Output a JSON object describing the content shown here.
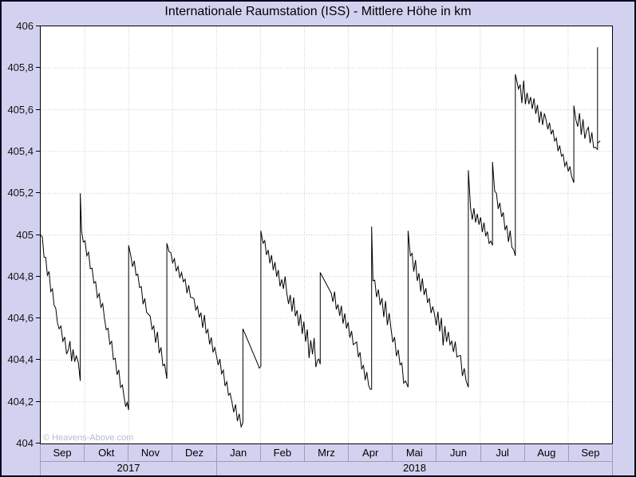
{
  "title": "Internationale Raumstation (ISS) - Mittlere Höhe in km",
  "watermark": "© Heavens-Above.com",
  "colors": {
    "background": "#d2d2f0",
    "plot_background": "#ffffff",
    "outer_border": "#06061e",
    "plot_frame": "#000000",
    "line": "#000000",
    "grid": "#c9c9c9",
    "band_divider": "#9c9cb4",
    "axis_text": "#141414",
    "watermark_text": "#b9b9cb"
  },
  "y_axis": {
    "min": 404,
    "max": 406,
    "step": 0.2,
    "tick_labels": [
      "406",
      "405,8",
      "405,6",
      "405,4",
      "405,2",
      "405",
      "404,8",
      "404,6",
      "404,4",
      "404,2",
      "404"
    ]
  },
  "x_axis": {
    "month_labels": [
      "Sep",
      "Okt",
      "Nov",
      "Dez",
      "Jan",
      "Feb",
      "Mrz",
      "Apr",
      "Mai",
      "Jun",
      "Jul",
      "Aug",
      "Sep"
    ],
    "year_rows": [
      {
        "label": "2017",
        "months": 4
      },
      {
        "label": "2018",
        "months": 9
      }
    ]
  },
  "chart_data": {
    "type": "line",
    "title": "Internationale Raumstation (ISS) - Mittlere Höhe in km",
    "xlabel": "",
    "ylabel": "",
    "ylim": [
      404,
      406
    ],
    "x_range_months": [
      0,
      13
    ],
    "x_unit": "Monate ab Sep 2017 (0 = 1. Sep 2017, 13 = 1. Okt 2018)",
    "x_tick_labels": [
      "Sep",
      "Okt",
      "Nov",
      "Dez",
      "Jan",
      "Feb",
      "Mrz",
      "Apr",
      "Mai",
      "Jun",
      "Jul",
      "Aug",
      "Sep"
    ],
    "x_tick_labels_secondary": [
      "2017",
      "2018"
    ],
    "grid": true,
    "legend": false,
    "line_color": "#000000",
    "noise_amplitude_km": 0.05,
    "anchors_format": "[Monate_seit_Sep_2017, Hoehe_km, Rauschamplitude_bis_zum_naechsten_Punkt]",
    "anchors": [
      [
        0.0,
        405.0,
        0.03
      ],
      [
        0.42,
        404.55,
        0.042
      ],
      [
        0.63,
        404.45,
        0.048
      ],
      [
        0.81,
        404.42,
        0.03
      ],
      [
        0.9,
        404.3,
        0.0
      ],
      [
        0.9,
        405.2,
        0.0
      ],
      [
        0.93,
        405.02,
        0.028
      ],
      [
        1.45,
        404.6,
        0.034
      ],
      [
        1.9,
        404.22,
        0.028
      ],
      [
        2.0,
        404.16,
        0.0
      ],
      [
        2.0,
        404.95,
        0.0
      ],
      [
        2.05,
        404.9,
        0.03
      ],
      [
        2.45,
        404.62,
        0.036
      ],
      [
        2.82,
        404.38,
        0.028
      ],
      [
        2.87,
        404.31,
        0.0
      ],
      [
        2.87,
        404.96,
        0.0
      ],
      [
        2.92,
        404.92,
        0.026
      ],
      [
        3.45,
        404.7,
        0.03
      ],
      [
        4.0,
        404.42,
        0.034
      ],
      [
        4.35,
        404.2,
        0.036
      ],
      [
        4.56,
        404.08,
        0.012
      ],
      [
        4.6,
        404.1,
        0.0
      ],
      [
        4.6,
        404.55,
        0.0
      ],
      [
        4.94,
        404.38,
        0.026
      ],
      [
        5.01,
        404.37,
        0.0
      ],
      [
        5.01,
        405.02,
        0.0
      ],
      [
        5.06,
        404.96,
        0.042
      ],
      [
        5.6,
        404.72,
        0.052
      ],
      [
        6.3,
        404.4,
        0.02
      ],
      [
        6.36,
        404.38,
        0.0
      ],
      [
        6.36,
        404.82,
        0.0
      ],
      [
        6.61,
        404.72,
        0.046
      ],
      [
        7.15,
        404.48,
        0.038
      ],
      [
        7.46,
        404.28,
        0.014
      ],
      [
        7.53,
        404.26,
        0.0
      ],
      [
        7.53,
        405.04,
        0.0
      ],
      [
        7.56,
        404.78,
        0.04
      ],
      [
        7.97,
        404.55,
        0.042
      ],
      [
        8.3,
        404.3,
        0.014
      ],
      [
        8.36,
        404.27,
        0.0
      ],
      [
        8.36,
        405.02,
        0.0
      ],
      [
        8.41,
        404.9,
        0.042
      ],
      [
        8.96,
        404.62,
        0.042
      ],
      [
        9.51,
        404.42,
        0.04
      ],
      [
        9.68,
        404.3,
        0.014
      ],
      [
        9.73,
        404.27,
        0.0
      ],
      [
        9.73,
        405.31,
        0.0
      ],
      [
        9.78,
        405.13,
        0.036
      ],
      [
        10.24,
        404.97,
        0.012
      ],
      [
        10.28,
        404.95,
        0.0
      ],
      [
        10.28,
        405.35,
        0.0
      ],
      [
        10.33,
        405.21,
        0.04
      ],
      [
        10.76,
        404.93,
        0.012
      ],
      [
        10.8,
        404.9,
        0.0
      ],
      [
        10.8,
        405.77,
        0.0
      ],
      [
        10.87,
        405.7,
        0.038
      ],
      [
        11.5,
        405.55,
        0.032
      ],
      [
        12.08,
        405.28,
        0.016
      ],
      [
        12.13,
        405.25,
        0.0
      ],
      [
        12.13,
        405.62,
        0.0
      ],
      [
        12.18,
        405.55,
        0.052
      ],
      [
        12.42,
        405.5,
        0.048
      ],
      [
        12.62,
        405.42,
        0.01
      ],
      [
        12.67,
        405.41,
        0.0
      ],
      [
        12.67,
        405.9,
        0.0
      ],
      [
        12.67,
        405.44,
        0.0
      ],
      [
        12.73,
        405.45,
        0.0
      ]
    ]
  }
}
